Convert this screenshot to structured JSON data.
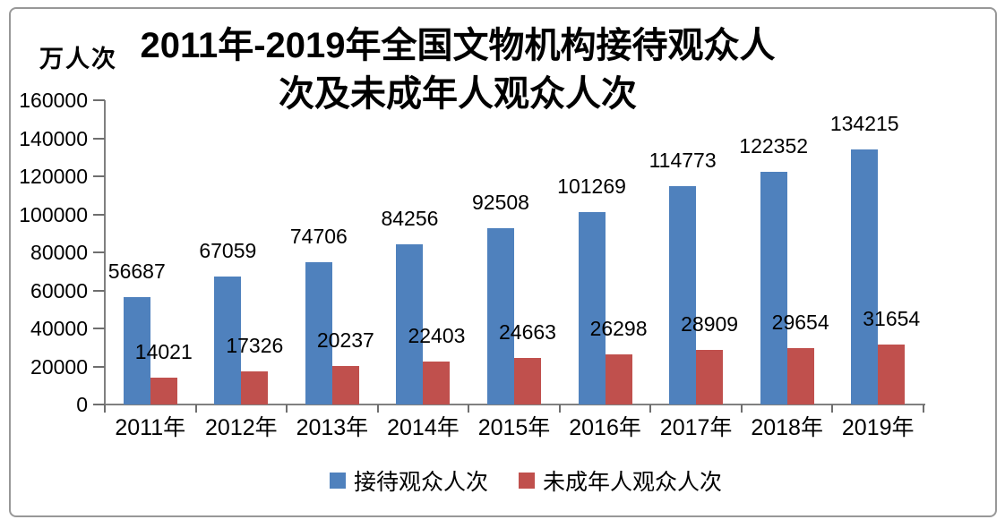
{
  "unit_label": "万人次",
  "title": {
    "line1": "2011年-2019年全国文物机构接待观众人",
    "line2": "次及未成年人观众人次"
  },
  "chart_data": {
    "type": "bar",
    "title": "2011年-2019年全国文物机构接待观众人次及未成年人观众人次",
    "unit": "万人次",
    "categories": [
      "2011年",
      "2012年",
      "2013年",
      "2014年",
      "2015年",
      "2016年",
      "2017年",
      "2018年",
      "2019年"
    ],
    "series": [
      {
        "name": "接待观众人次",
        "color": "#4F81BD",
        "values": [
          56687,
          67059,
          74706,
          84256,
          92508,
          101269,
          114773,
          122352,
          134215
        ]
      },
      {
        "name": "未成年人观众人次",
        "color": "#C0504D",
        "values": [
          14021,
          17326,
          20237,
          22403,
          24663,
          26298,
          28909,
          29654,
          31654
        ]
      }
    ],
    "ylim": [
      0,
      160000
    ],
    "yticks": [
      0,
      20000,
      40000,
      60000,
      80000,
      100000,
      120000,
      140000,
      160000
    ],
    "grid": false,
    "data_labels": true,
    "legend_position": "bottom"
  }
}
